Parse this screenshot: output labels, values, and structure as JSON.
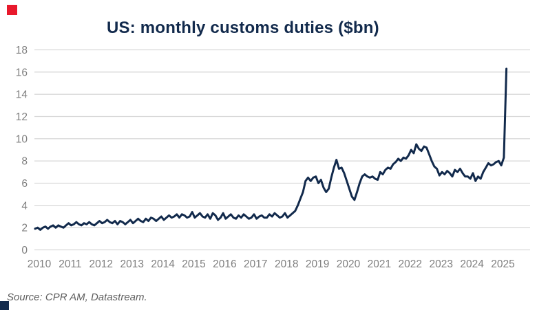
{
  "header": {
    "title": "US: monthly customs duties ($bn)",
    "title_color": "#122a4c"
  },
  "branding": {
    "top_left_square_color": "#e8192c",
    "bottom_left_square_color": "#122a4c"
  },
  "source": {
    "text": "Source: CPR AM, Datastream."
  },
  "chart_data": {
    "type": "line",
    "title": "US: monthly customs duties ($bn)",
    "frequency": "monthly",
    "x_start": "2010-01",
    "x_end": "2025-04",
    "x_tick_labels": [
      "2010",
      "2011",
      "2012",
      "2013",
      "2014",
      "2015",
      "2016",
      "2017",
      "2018",
      "2019",
      "2020",
      "2021",
      "2022",
      "2023",
      "2024",
      "2025"
    ],
    "y_ticks": [
      0,
      2,
      4,
      6,
      8,
      10,
      12,
      14,
      16,
      18
    ],
    "ylim": [
      0,
      18
    ],
    "grid": "horizontal",
    "legend": "none",
    "line_color": "#122a4c",
    "gridline_color": "#d9d9d9",
    "tick_label_color": "#7f7f7f",
    "values": [
      1.9,
      2.0,
      1.8,
      2.0,
      2.1,
      1.9,
      2.1,
      2.2,
      2.0,
      2.2,
      2.1,
      2.0,
      2.2,
      2.4,
      2.2,
      2.3,
      2.5,
      2.3,
      2.2,
      2.4,
      2.3,
      2.5,
      2.3,
      2.2,
      2.4,
      2.6,
      2.4,
      2.5,
      2.7,
      2.5,
      2.4,
      2.6,
      2.3,
      2.6,
      2.5,
      2.3,
      2.5,
      2.7,
      2.4,
      2.6,
      2.8,
      2.6,
      2.5,
      2.8,
      2.6,
      2.9,
      2.8,
      2.6,
      2.8,
      3.0,
      2.7,
      2.9,
      3.1,
      2.9,
      3.0,
      3.2,
      2.9,
      3.2,
      3.1,
      2.9,
      3.0,
      3.4,
      2.9,
      3.1,
      3.3,
      3.0,
      2.9,
      3.2,
      2.8,
      3.3,
      3.1,
      2.7,
      2.9,
      3.3,
      2.8,
      3.0,
      3.2,
      2.9,
      2.8,
      3.1,
      2.9,
      3.2,
      3.0,
      2.8,
      2.9,
      3.2,
      2.8,
      3.0,
      3.1,
      2.9,
      2.9,
      3.2,
      3.0,
      3.3,
      3.1,
      2.9,
      3.0,
      3.3,
      2.9,
      3.1,
      3.3,
      3.5,
      4.0,
      4.6,
      5.2,
      6.2,
      6.5,
      6.2,
      6.5,
      6.6,
      6.0,
      6.3,
      5.6,
      5.2,
      5.5,
      6.5,
      7.4,
      8.1,
      7.3,
      7.4,
      6.9,
      6.2,
      5.5,
      4.8,
      4.5,
      5.2,
      6.0,
      6.6,
      6.8,
      6.6,
      6.5,
      6.6,
      6.4,
      6.3,
      7.0,
      6.8,
      7.2,
      7.4,
      7.3,
      7.7,
      7.9,
      8.2,
      8.0,
      8.3,
      8.2,
      8.5,
      9.0,
      8.7,
      9.5,
      9.1,
      8.9,
      9.3,
      9.2,
      8.6,
      8.0,
      7.5,
      7.3,
      6.7,
      7.0,
      6.8,
      7.1,
      6.9,
      6.6,
      7.2,
      7.0,
      7.3,
      6.9,
      6.6,
      6.6,
      6.4,
      6.9,
      6.2,
      6.6,
      6.4,
      7.0,
      7.4,
      7.8,
      7.6,
      7.7,
      7.9,
      8.0,
      7.6,
      8.3,
      16.3
    ]
  }
}
